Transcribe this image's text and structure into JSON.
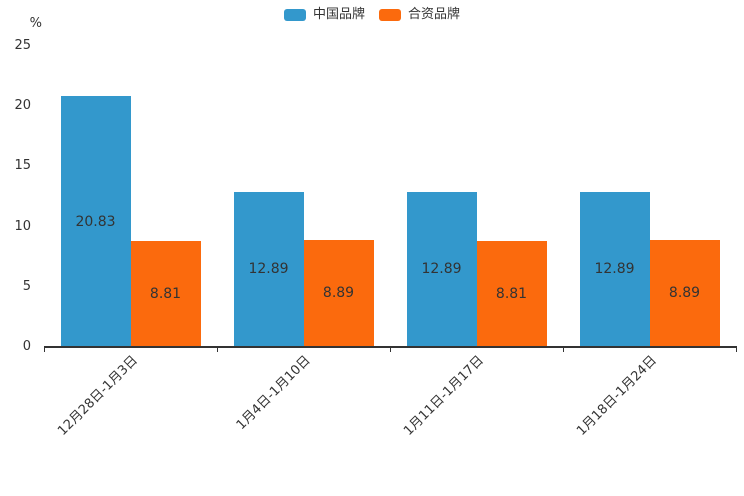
{
  "chart_data": {
    "type": "bar",
    "title": "",
    "unit_label": "%",
    "categories": [
      "12月28日-1月3日",
      "1月4日-1月10日",
      "1月11日-1月17日",
      "1月18日-1月24日"
    ],
    "series": [
      {
        "key": "china-brand",
        "name": "中国品牌",
        "color": "#3398CC",
        "values": [
          20.83,
          12.89,
          12.89,
          12.89
        ]
      },
      {
        "key": "joint-venture-brand",
        "name": "合资品牌",
        "color": "#FB6A0D",
        "values": [
          8.81,
          8.89,
          8.81,
          8.89
        ]
      }
    ],
    "ylim": [
      0,
      25
    ],
    "yticks": [
      0,
      5,
      10,
      15,
      20,
      25
    ],
    "grid": false,
    "legend_position": "top-center",
    "value_label_position": "inside-center",
    "xlabel": "",
    "ylabel": "",
    "axis_color": "#333333",
    "text_color": "#333333"
  }
}
